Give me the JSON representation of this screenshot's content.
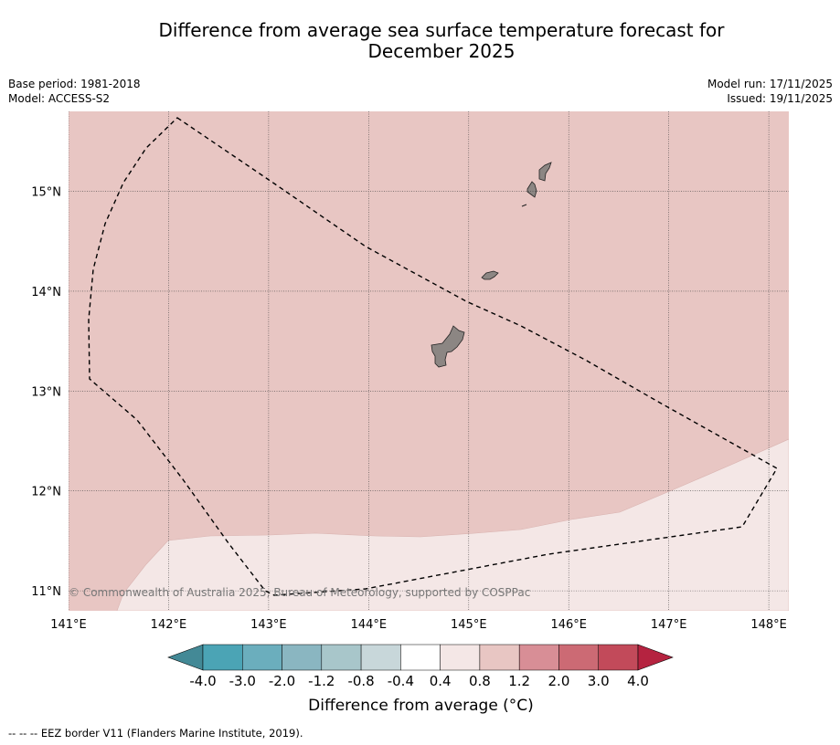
{
  "title_line1": "Difference from average sea surface temperature forecast for",
  "title_line2": "December 2025",
  "meta_left": {
    "base_period": "Base period: 1981-2018",
    "model": "Model: ACCESS-S2"
  },
  "meta_right": {
    "model_run": "Model run: 17/11/2025",
    "issued": "Issued: 19/11/2025"
  },
  "map": {
    "lon_range": [
      141.0,
      148.2
    ],
    "lat_range": [
      10.8,
      15.8
    ],
    "lon_ticks": [
      "141°E",
      "142°E",
      "143°E",
      "144°E",
      "145°E",
      "146°E",
      "147°E",
      "148°E"
    ],
    "lat_ticks": [
      "15°N",
      "14°N",
      "13°N",
      "12°N",
      "11°N"
    ],
    "copyright": "© Commonwealth of Australia 2025, Bureau of Meteorology, supported by COSPPac",
    "regions": [
      {
        "name": "0.8 to 1.2 °C",
        "color": "#e8c6c3"
      },
      {
        "name": "0.4 to 0.8 °C",
        "color": "#f4e7e6"
      }
    ],
    "land_color": "#8c8683"
  },
  "colorbar": {
    "label": "Difference from average (°C)",
    "ticks": [
      "-4.0",
      "-3.0",
      "-2.0",
      "-1.2",
      "-0.8",
      "-0.4",
      "0.4",
      "0.8",
      "1.2",
      "2.0",
      "3.0",
      "4.0"
    ],
    "colors": [
      "#4ba4b5",
      "#6baebd",
      "#8ab6c1",
      "#a8c6ca",
      "#c8d7da",
      "#ffffff",
      "#f4e7e6",
      "#e8c6c3",
      "#d88e96",
      "#cc6a74",
      "#c24a5a"
    ],
    "under_color": "#438996",
    "over_color": "#b52340"
  },
  "footer": "--  --  -- EEZ border V11 (Flanders Marine Institute, 2019)."
}
